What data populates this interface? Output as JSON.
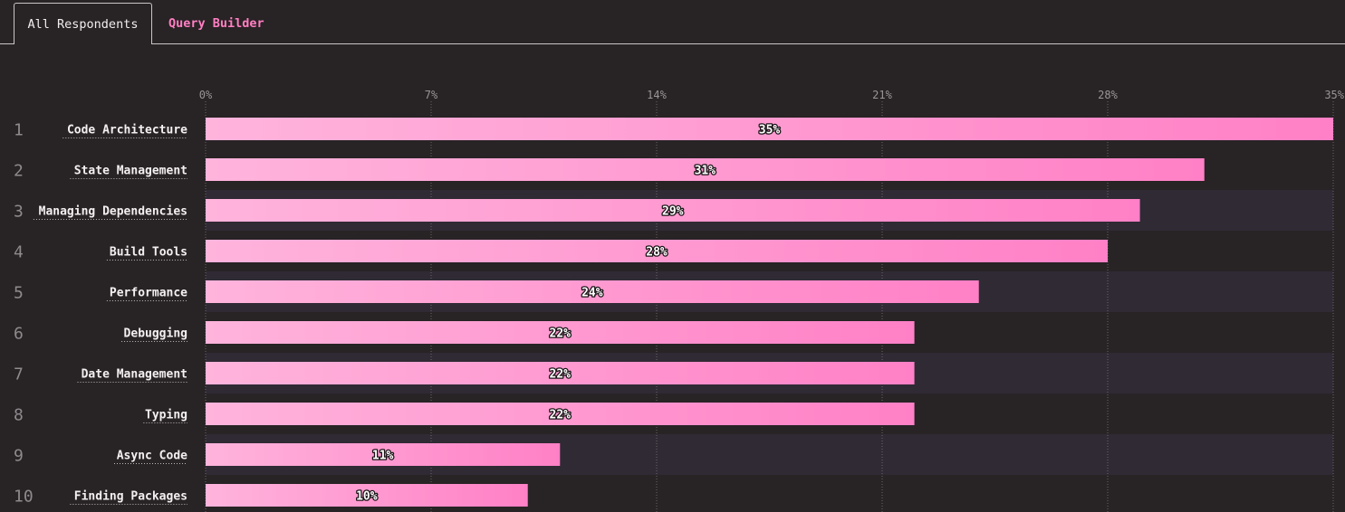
{
  "tabs": {
    "all_respondents": "All Respondents",
    "query_builder": "Query Builder"
  },
  "colors": {
    "background": "#282325",
    "row_stripe": "#302a35",
    "bar_start": "#ffb4dc",
    "bar_end": "#ff80c6",
    "active_tab_accent": "#ff7fc2",
    "grid": "#6b6669",
    "tick_text": "#9a9597"
  },
  "chart_data": {
    "type": "bar",
    "orientation": "horizontal",
    "title": "",
    "xlabel": "",
    "ylabel": "",
    "xlim": [
      0,
      35
    ],
    "ticks": [
      "0%",
      "7%",
      "14%",
      "21%",
      "28%",
      "35%"
    ],
    "grid": true,
    "ranks": [
      "1",
      "2",
      "3",
      "4",
      "5",
      "6",
      "7",
      "8",
      "9",
      "10"
    ],
    "categories": [
      "Code Architecture",
      "State Management",
      "Managing Dependencies",
      "Build Tools",
      "Performance",
      "Debugging",
      "Date Management",
      "Typing",
      "Async Code",
      "Finding Packages"
    ],
    "values": [
      35,
      31,
      29,
      28,
      24,
      22,
      22,
      22,
      11,
      10
    ],
    "value_labels": [
      "35%",
      "31%",
      "29%",
      "28%",
      "24%",
      "22%",
      "22%",
      "22%",
      "11%",
      "10%"
    ]
  }
}
